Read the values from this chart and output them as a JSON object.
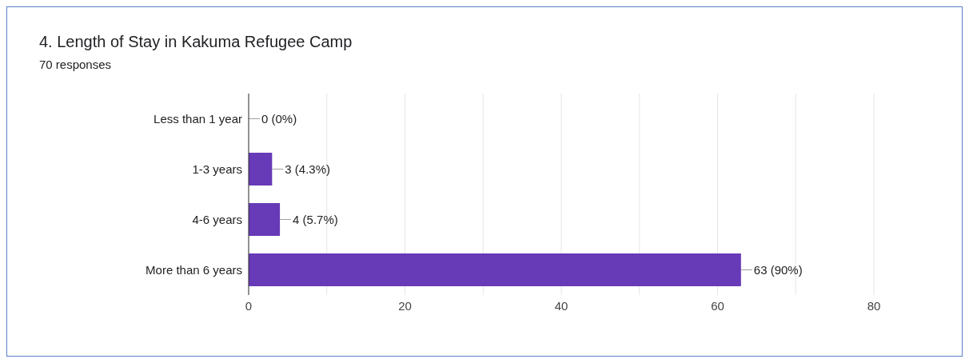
{
  "chart_data": {
    "type": "bar",
    "orientation": "horizontal",
    "title": "4. Length of Stay in Kakuma Refugee Camp",
    "subtitle": "70 responses",
    "categories": [
      "Less than 1 year",
      "1-3 years",
      "4-6 years",
      "More than 6 years"
    ],
    "values": [
      0,
      3,
      4,
      63
    ],
    "color": "#673ab7",
    "value_labels": [
      "0 (0%)",
      "3 (4.3%)",
      "4 (5.7%)",
      "63 (90%)"
    ],
    "xlim": [
      0,
      80
    ],
    "xticks": [
      0,
      {
        "value": 10,
        "label": null
      },
      20,
      {
        "value": 30,
        "label": null
      },
      40,
      {
        "value": 50,
        "label": null
      },
      60,
      {
        "value": 70,
        "label": null
      },
      80
    ],
    "grid": "x",
    "legend": false
  }
}
